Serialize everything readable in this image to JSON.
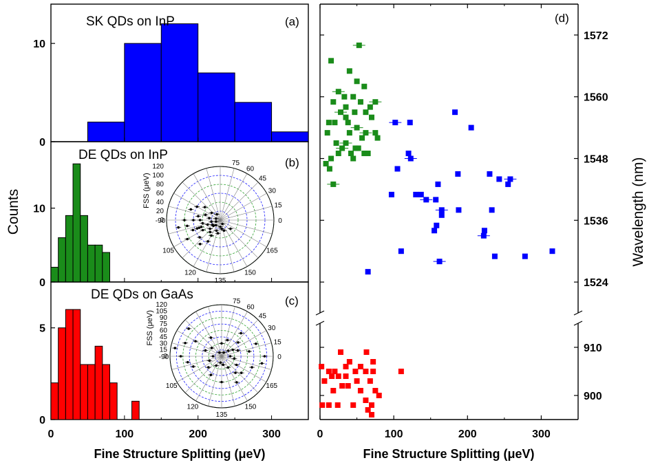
{
  "chart_data": [
    {
      "id": "a",
      "type": "bar",
      "panel_label": "(a)",
      "title": "SK QDs on InP",
      "color": "#0000ff",
      "bins_x_start": [
        50,
        100,
        150,
        200,
        250,
        300
      ],
      "bin_width": 50,
      "values": [
        2,
        10,
        12,
        7,
        4,
        1
      ],
      "ylim": [
        0,
        14
      ],
      "yticks": [
        "0",
        "10"
      ],
      "xlim": [
        0,
        350
      ]
    },
    {
      "id": "b",
      "type": "bar",
      "panel_label": "(b)",
      "title": "DE QDs on InP",
      "color": "#1a8c1a",
      "bins_x_start": [
        0,
        10,
        20,
        30,
        40,
        50,
        60,
        70,
        80
      ],
      "bin_width": 10,
      "values": [
        2,
        6,
        9,
        16,
        9,
        5,
        5,
        4,
        0
      ],
      "ylim": [
        0,
        19
      ],
      "yticks": [
        "0",
        "10"
      ],
      "xlim": [
        0,
        350
      ],
      "inset": {
        "type": "polar",
        "radial_label": "FSS (μeV)",
        "radial_ticks": [
          "0",
          "20",
          "40",
          "60",
          "80",
          "100",
          "120"
        ],
        "angle_labels": [
          "0",
          "15",
          "30",
          "45",
          "60",
          "75",
          "-90",
          "105",
          "120",
          "135",
          "150",
          "165"
        ],
        "points_angle_fss": [
          [
            100,
            50
          ],
          [
            110,
            60
          ],
          [
            95,
            75
          ],
          [
            80,
            35
          ],
          [
            120,
            40
          ],
          [
            130,
            30
          ],
          [
            140,
            20
          ],
          [
            105,
            45
          ],
          [
            90,
            60
          ],
          [
            100,
            55
          ],
          [
            115,
            35
          ],
          [
            125,
            25
          ],
          [
            95,
            40
          ],
          [
            85,
            50
          ],
          [
            100,
            30
          ],
          [
            110,
            20
          ],
          [
            135,
            15
          ],
          [
            145,
            25
          ],
          [
            100,
            65
          ],
          [
            90,
            80
          ],
          [
            80,
            70
          ],
          [
            105,
            85
          ],
          [
            95,
            95
          ],
          [
            115,
            70
          ],
          [
            120,
            55
          ],
          [
            100,
            45
          ],
          [
            90,
            45
          ],
          [
            75,
            60
          ],
          [
            70,
            45
          ],
          [
            85,
            25
          ],
          [
            95,
            20
          ],
          [
            105,
            20
          ],
          [
            115,
            15
          ],
          [
            160,
            30
          ],
          [
            150,
            10
          ],
          [
            100,
            10
          ],
          [
            80,
            10
          ],
          [
            60,
            15
          ],
          [
            70,
            25
          ],
          [
            110,
            30
          ]
        ]
      }
    },
    {
      "id": "c",
      "type": "bar",
      "panel_label": "(c)",
      "title": "DE QDs on GaAs",
      "color": "#ff0000",
      "bins_x_start": [
        0,
        10,
        20,
        30,
        40,
        50,
        60,
        70,
        80,
        90,
        100,
        110
      ],
      "bin_width": 10,
      "values": [
        2,
        5,
        6,
        6,
        3,
        3,
        4,
        3,
        2,
        0,
        0,
        1
      ],
      "ylim": [
        0,
        7.5
      ],
      "yticks": [
        "0",
        "5"
      ],
      "xlim": [
        0,
        350
      ],
      "xticks": [
        "0",
        "100",
        "200",
        "300"
      ],
      "inset": {
        "type": "polar",
        "radial_label": "FSS (μeV)",
        "radial_ticks": [
          "0",
          "15",
          "30",
          "45",
          "60",
          "75",
          "90",
          "105",
          "120"
        ],
        "angle_labels": [
          "0",
          "15",
          "30",
          "45",
          "60",
          "75",
          "-90",
          "105",
          "120",
          "135",
          "150",
          "165"
        ],
        "points_angle_fss": [
          [
            0,
            20
          ],
          [
            10,
            40
          ],
          [
            20,
            50
          ],
          [
            160,
            60
          ],
          [
            170,
            75
          ],
          [
            175,
            95
          ],
          [
            5,
            65
          ],
          [
            15,
            30
          ],
          [
            150,
            30
          ],
          [
            140,
            20
          ],
          [
            130,
            15
          ],
          [
            120,
            25
          ],
          [
            30,
            10
          ],
          [
            45,
            30
          ],
          [
            60,
            50
          ],
          [
            75,
            70
          ],
          [
            80,
            90
          ],
          [
            70,
            100
          ],
          [
            100,
            70
          ],
          [
            95,
            80
          ],
          [
            90,
            95
          ],
          [
            85,
            110
          ],
          [
            110,
            40
          ],
          [
            100,
            30
          ],
          [
            90,
            20
          ],
          [
            60,
            10
          ],
          [
            165,
            40
          ],
          [
            155,
            50
          ],
          [
            150,
            70
          ],
          [
            20,
            20
          ],
          [
            35,
            40
          ],
          [
            25,
            70
          ],
          [
            10,
            85
          ],
          [
            0,
            100
          ],
          [
            175,
            30
          ],
          [
            120,
            50
          ],
          [
            135,
            60
          ],
          [
            80,
            40
          ],
          [
            70,
            30
          ]
        ]
      }
    },
    {
      "id": "d",
      "type": "scatter",
      "panel_label": "(d)",
      "xlabel": "Fine Structure Splitting (μeV)",
      "ylabel": "Wavelength (nm)",
      "xlim": [
        0,
        350
      ],
      "xticks": [
        "0",
        "100",
        "200",
        "300"
      ],
      "y_upper_range": [
        1518,
        1578
      ],
      "y_upper_ticks": [
        "1524",
        "1536",
        "1548",
        "1560",
        "1572"
      ],
      "y_lower_range": [
        895,
        915
      ],
      "y_lower_ticks": [
        "900",
        "910"
      ],
      "series": [
        {
          "color": "#1a8c1a",
          "points": [
            [
              53,
              1570
            ],
            [
              15,
              1567
            ],
            [
              50,
              1563
            ],
            [
              40,
              1565
            ],
            [
              60,
              1562
            ],
            [
              25,
              1561
            ],
            [
              45,
              1560
            ],
            [
              33,
              1560
            ],
            [
              55,
              1559
            ],
            [
              68,
              1558
            ],
            [
              75,
              1559
            ],
            [
              18,
              1559
            ],
            [
              35,
              1558
            ],
            [
              47,
              1557
            ],
            [
              62,
              1557
            ],
            [
              28,
              1557
            ],
            [
              70,
              1556
            ],
            [
              20,
              1555
            ],
            [
              12,
              1555
            ],
            [
              38,
              1555
            ],
            [
              50,
              1554
            ],
            [
              40,
              1553
            ],
            [
              57,
              1552
            ],
            [
              78,
              1552
            ],
            [
              22,
              1551
            ],
            [
              30,
              1550
            ],
            [
              48,
              1550
            ],
            [
              60,
              1549
            ],
            [
              65,
              1549
            ],
            [
              52,
              1550
            ],
            [
              35,
              1551
            ],
            [
              42,
              1549
            ],
            [
              25,
              1549
            ],
            [
              15,
              1548
            ],
            [
              13,
              1546
            ],
            [
              18,
              1543
            ],
            [
              45,
              1548
            ],
            [
              8,
              1547
            ],
            [
              10,
              1553
            ],
            [
              75,
              1553
            ],
            [
              62,
              1553
            ],
            [
              35,
              1556
            ]
          ]
        },
        {
          "color": "#0000ff",
          "points": [
            [
              102,
              1555
            ],
            [
              122,
              1555
            ],
            [
              205,
              1554
            ],
            [
              183,
              1557
            ],
            [
              120,
              1549
            ],
            [
              123,
              1548
            ],
            [
              105,
              1546
            ],
            [
              187,
              1545
            ],
            [
              230,
              1545
            ],
            [
              243,
              1544
            ],
            [
              258,
              1544
            ],
            [
              160,
              1543
            ],
            [
              97,
              1541
            ],
            [
              130,
              1541
            ],
            [
              137,
              1541
            ],
            [
              144,
              1540
            ],
            [
              157,
              1540
            ],
            [
              255,
              1543
            ],
            [
              188,
              1538
            ],
            [
              233,
              1538
            ],
            [
              165,
              1538
            ],
            [
              165,
              1537
            ],
            [
              158,
              1535
            ],
            [
              155,
              1534
            ],
            [
              223,
              1534
            ],
            [
              222,
              1533
            ],
            [
              110,
              1530
            ],
            [
              315,
              1530
            ],
            [
              278,
              1529
            ],
            [
              237,
              1529
            ],
            [
              162,
              1528
            ],
            [
              65,
              1526
            ]
          ]
        },
        {
          "color": "#ff0000",
          "points": [
            [
              28,
              909
            ],
            [
              63,
              909
            ],
            [
              2,
              906
            ],
            [
              40,
              907
            ],
            [
              72,
              907
            ],
            [
              110,
              905
            ],
            [
              20,
              905
            ],
            [
              12,
              905
            ],
            [
              35,
              906
            ],
            [
              48,
              905
            ],
            [
              55,
              906
            ],
            [
              62,
              905
            ],
            [
              72,
              905
            ],
            [
              16,
              904
            ],
            [
              25,
              904
            ],
            [
              35,
              904
            ],
            [
              50,
              903
            ],
            [
              6,
              903
            ],
            [
              68,
              903
            ],
            [
              30,
              902
            ],
            [
              38,
              902
            ],
            [
              55,
              901
            ],
            [
              75,
              901
            ],
            [
              18,
              901
            ],
            [
              80,
              900
            ],
            [
              62,
              899
            ],
            [
              12,
              898
            ],
            [
              24,
              898
            ],
            [
              45,
              898
            ],
            [
              70,
              898
            ],
            [
              3,
              898
            ],
            [
              65,
              897
            ],
            [
              70,
              896
            ]
          ]
        }
      ]
    }
  ],
  "shared": {
    "ylabel_left": "Counts",
    "xlabel_left": "Fine Structure Splitting (μeV)"
  }
}
